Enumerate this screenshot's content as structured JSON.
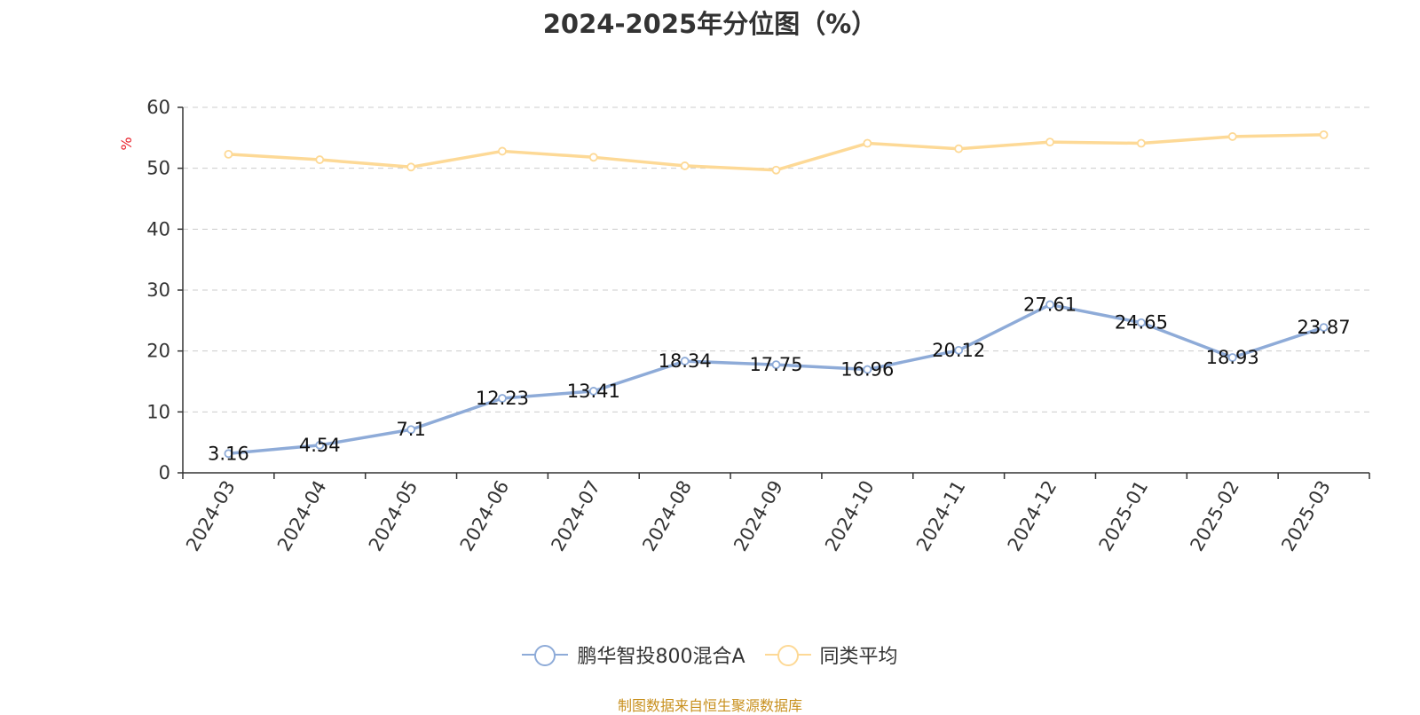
{
  "title": "2024-2025年分位图（%）",
  "source_note": "制图数据来自恒生聚源数据库",
  "colors": {
    "series_main": "#8eabd8",
    "series_avg": "#fdd996",
    "y_unit": "#e8202a",
    "source_note": "#c8901e",
    "grid": "#cccccc",
    "axis": "#333333"
  },
  "legend": {
    "placement": "bottom-center",
    "items": [
      {
        "label": "鹏华智投800混合A",
        "color": "#8eabd8"
      },
      {
        "label": "同类平均",
        "color": "#fdd996"
      }
    ]
  },
  "chart_data": {
    "type": "line",
    "title": "2024-2025年分位图（%）",
    "y_unit_label": "%",
    "xlabel": "",
    "ylabel": "%",
    "ylim": [
      0,
      60
    ],
    "yticks": [
      0,
      10,
      20,
      30,
      40,
      50,
      60
    ],
    "grid": "horizontal-dashed",
    "categories": [
      "2024-03",
      "2024-04",
      "2024-05",
      "2024-06",
      "2024-07",
      "2024-08",
      "2024-09",
      "2024-10",
      "2024-11",
      "2024-12",
      "2025-01",
      "2025-02",
      "2025-03"
    ],
    "series": [
      {
        "name": "鹏华智投800混合A",
        "values": [
          3.16,
          4.54,
          7.1,
          12.23,
          13.41,
          18.34,
          17.75,
          16.96,
          20.12,
          27.61,
          24.65,
          18.93,
          23.87
        ],
        "labels": [
          "3.16",
          "4.54",
          "7.1",
          "12.23",
          "13.41",
          "18.34",
          "17.75",
          "16.96",
          "20.12",
          "27.61",
          "24.65",
          "18.93",
          "23.87"
        ],
        "show_labels": true
      },
      {
        "name": "同类平均",
        "values": [
          52.3,
          51.4,
          50.2,
          52.8,
          51.8,
          50.4,
          49.7,
          54.1,
          53.2,
          54.3,
          54.1,
          55.2,
          55.5
        ],
        "show_labels": false
      }
    ]
  }
}
